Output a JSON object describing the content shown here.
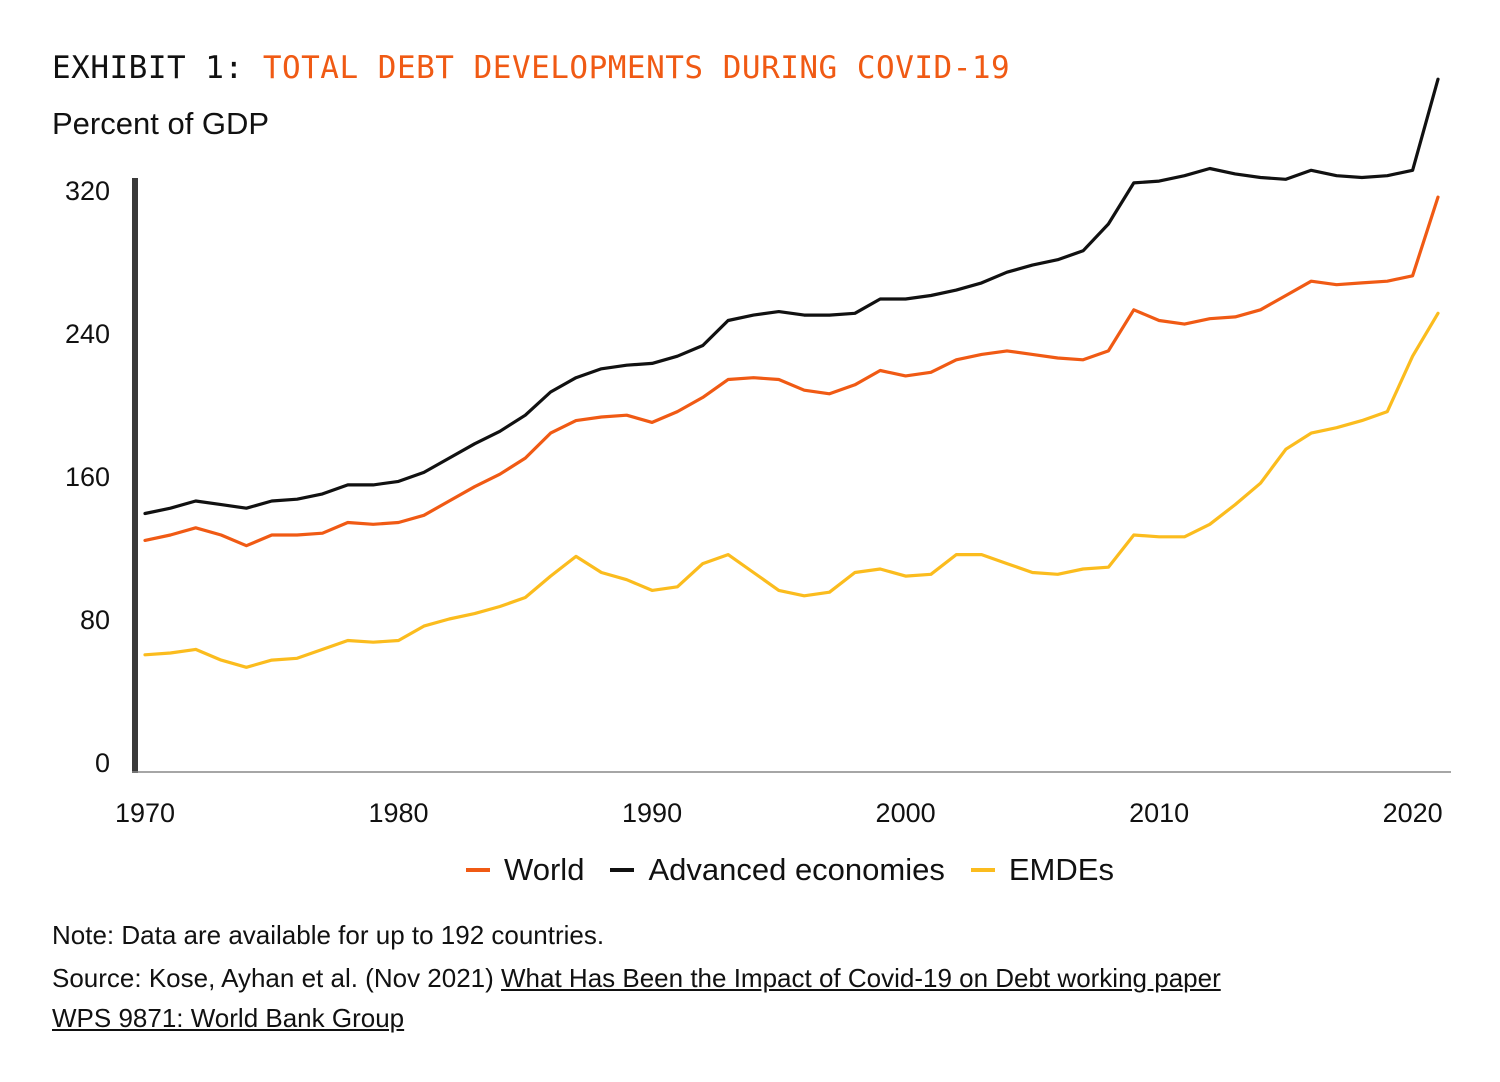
{
  "header": {
    "exhibit_prefix": "EXHIBIT 1:",
    "exhibit_name": "TOTAL DEBT DEVELOPMENTS DURING COVID-19",
    "unit_label": "Percent of GDP"
  },
  "chart_data": {
    "type": "line",
    "title": "TOTAL DEBT DEVELOPMENTS DURING COVID-19",
    "ylabel": "Percent of GDP",
    "xlabel": "",
    "xlim": [
      1970,
      2021
    ],
    "ylim": [
      0,
      320
    ],
    "x_ticks": [
      1970,
      1980,
      1990,
      2000,
      2010,
      2020
    ],
    "y_ticks": [
      0,
      80,
      160,
      240,
      320
    ],
    "grid": false,
    "legend_position": "bottom",
    "x": [
      1970,
      1971,
      1972,
      1973,
      1974,
      1975,
      1976,
      1977,
      1978,
      1979,
      1980,
      1981,
      1982,
      1983,
      1984,
      1985,
      1986,
      1987,
      1988,
      1989,
      1990,
      1991,
      1992,
      1993,
      1994,
      1995,
      1996,
      1997,
      1998,
      1999,
      2000,
      2001,
      2002,
      2003,
      2004,
      2005,
      2006,
      2007,
      2008,
      2009,
      2010,
      2011,
      2012,
      2013,
      2014,
      2015,
      2016,
      2017,
      2018,
      2019,
      2020,
      2021
    ],
    "series": [
      {
        "name": "World",
        "color": "#f05a14",
        "values": [
          124,
          127,
          131,
          127,
          121,
          127,
          127,
          128,
          134,
          133,
          134,
          138,
          146,
          154,
          161,
          170,
          184,
          191,
          193,
          194,
          190,
          196,
          204,
          214,
          215,
          214,
          208,
          206,
          211,
          219,
          216,
          218,
          225,
          228,
          230,
          228,
          226,
          225,
          230,
          253,
          247,
          245,
          248,
          249,
          253,
          261,
          269,
          267,
          268,
          269,
          272,
          316
        ]
      },
      {
        "name": "Advanced economies",
        "color": "#111111",
        "values": [
          139,
          142,
          146,
          144,
          142,
          146,
          147,
          150,
          155,
          155,
          157,
          162,
          170,
          178,
          185,
          194,
          207,
          215,
          220,
          222,
          223,
          227,
          233,
          247,
          250,
          252,
          250,
          250,
          251,
          259,
          259,
          261,
          264,
          268,
          274,
          278,
          281,
          286,
          301,
          324,
          325,
          328,
          332,
          329,
          327,
          326,
          331,
          328,
          327,
          328,
          331,
          382
        ]
      },
      {
        "name": "EMDEs",
        "color": "#fbbc1e",
        "values": [
          60,
          61,
          63,
          57,
          53,
          57,
          58,
          63,
          68,
          67,
          68,
          76,
          80,
          83,
          87,
          92,
          104,
          115,
          106,
          102,
          96,
          98,
          111,
          116,
          106,
          96,
          93,
          95,
          106,
          108,
          104,
          105,
          116,
          116,
          111,
          106,
          105,
          108,
          109,
          127,
          126,
          126,
          133,
          144,
          156,
          175,
          184,
          187,
          191,
          196,
          227,
          251
        ]
      }
    ]
  },
  "legend": {
    "items": [
      {
        "label": "World",
        "color": "#f05a14"
      },
      {
        "label": "Advanced economies",
        "color": "#111111"
      },
      {
        "label": "EMDEs",
        "color": "#fbbc1e"
      }
    ]
  },
  "footer": {
    "note": "Note: Data are available for up to 192 countries.",
    "source_prefix": "Source: Kose, Ayhan et al. (Nov 2021) ",
    "source_link_line1": "What Has Been the Impact of Covid-19 on Debt working paper",
    "source_link_line2": "WPS 9871: World Bank Group"
  }
}
